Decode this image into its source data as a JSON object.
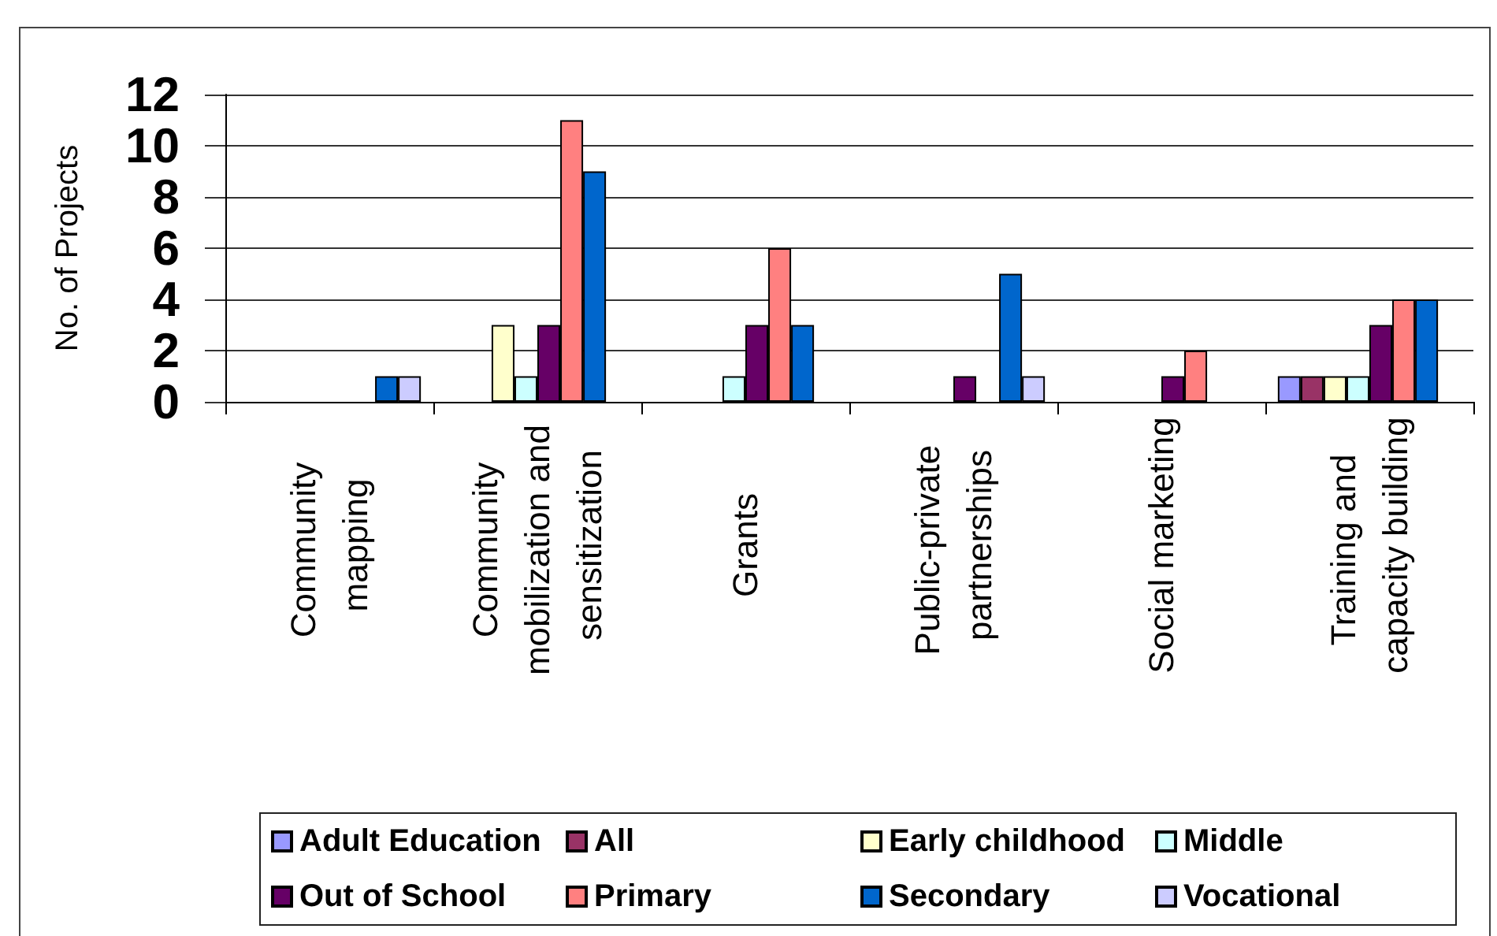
{
  "chart_data": {
    "type": "bar",
    "ylabel": "No. of Projects",
    "categories": [
      "Community mapping",
      "Community mobilization and sensitization",
      "Grants",
      "Public-private partnerships",
      "Social marketing",
      "Training and capacity building"
    ],
    "series": [
      {
        "name": "Adult Education",
        "color": "#9999ff",
        "values": [
          null,
          null,
          null,
          null,
          null,
          1
        ]
      },
      {
        "name": "All",
        "color": "#993366",
        "values": [
          null,
          null,
          null,
          null,
          null,
          1
        ]
      },
      {
        "name": "Early childhood",
        "color": "#ffffcc",
        "values": [
          null,
          3,
          null,
          null,
          null,
          1
        ]
      },
      {
        "name": "Middle",
        "color": "#ccffff",
        "values": [
          null,
          1,
          1,
          null,
          null,
          1
        ]
      },
      {
        "name": "Out of School",
        "color": "#660066",
        "values": [
          null,
          3,
          3,
          1,
          1,
          3
        ]
      },
      {
        "name": "Primary",
        "color": "#ff8080",
        "values": [
          null,
          11,
          6,
          null,
          2,
          4
        ]
      },
      {
        "name": "Secondary",
        "color": "#0066cc",
        "values": [
          1,
          9,
          3,
          5,
          null,
          4
        ]
      },
      {
        "name": "Vocational",
        "color": "#ccccff",
        "values": [
          1,
          null,
          null,
          1,
          null,
          null
        ]
      }
    ],
    "ylim": [
      0,
      12
    ],
    "yticks": [
      0,
      2,
      4,
      6,
      8,
      10,
      12
    ],
    "grid": "y",
    "legend": "bottom"
  }
}
